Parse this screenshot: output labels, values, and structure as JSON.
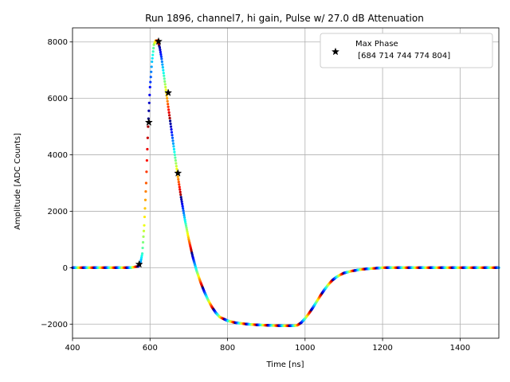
{
  "chart_data": {
    "type": "scatter",
    "title": "Run 1896, channel7, hi gain, Pulse w/ 27.0 dB Attenuation",
    "xlabel": "Time [ns]",
    "ylabel": "Amplitude [ADC Counts]",
    "xlim": [
      400,
      1500
    ],
    "ylim": [
      -2500,
      8500
    ],
    "xticks": [
      400,
      600,
      800,
      1000,
      1200,
      1400
    ],
    "yticks": [
      -2000,
      0,
      2000,
      4000,
      6000,
      8000
    ],
    "xtick_labels": [
      "400",
      "600",
      "800",
      "1000",
      "1200",
      "1400"
    ],
    "ytick_labels": [
      "−2000",
      "0",
      "2000",
      "4000",
      "6000",
      "8000"
    ],
    "grid": true,
    "legend_position": "top-right",
    "colormap": "jet",
    "pulse_curve": {
      "x": [
        400,
        550,
        570,
        575,
        580,
        585,
        590,
        595,
        600,
        605,
        610,
        615,
        620,
        625,
        630,
        635,
        640,
        645,
        650,
        660,
        670,
        680,
        690,
        700,
        710,
        720,
        730,
        740,
        750,
        760,
        770,
        780,
        800,
        820,
        850,
        880,
        900,
        920,
        950,
        970,
        980,
        990,
        1000,
        1010,
        1020,
        1030,
        1040,
        1050,
        1060,
        1070,
        1080,
        1090,
        1100,
        1120,
        1140,
        1160,
        1180,
        1200,
        1250,
        1300,
        1400,
        1500
      ],
      "y": [
        0,
        0,
        50,
        150,
        500,
        1500,
        3000,
        5000,
        6400,
        7300,
        7900,
        8050,
        8050,
        7800,
        7400,
        6900,
        6400,
        5900,
        5400,
        4400,
        3400,
        2500,
        1700,
        1000,
        400,
        -100,
        -500,
        -850,
        -1150,
        -1400,
        -1600,
        -1750,
        -1880,
        -1950,
        -2000,
        -2030,
        -2040,
        -2050,
        -2060,
        -2060,
        -2040,
        -1950,
        -1800,
        -1620,
        -1420,
        -1200,
        -980,
        -780,
        -600,
        -450,
        -340,
        -260,
        -190,
        -120,
        -70,
        -40,
        -20,
        0,
        0,
        0,
        0,
        0
      ]
    },
    "series": [
      {
        "name": "Max Phase\n [684 714 744 774 804]",
        "marker": "star",
        "color": "#000000",
        "x": [
          572,
          597,
          622,
          647,
          672
        ],
        "y": [
          120,
          5150,
          8020,
          6200,
          3350
        ]
      }
    ]
  }
}
